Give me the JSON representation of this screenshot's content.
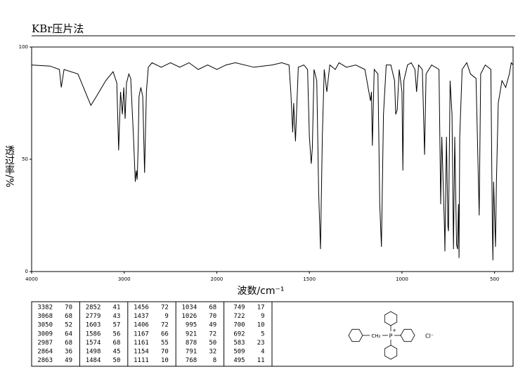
{
  "chart_data": {
    "type": "line",
    "title": "KBr压片法",
    "x_label": "波数/cm⁻¹",
    "y_label": "透过率/%",
    "xlim": [
      4000,
      400
    ],
    "xticks": [
      4000,
      3000,
      2000,
      1500,
      1000,
      500
    ],
    "ylim": [
      0,
      100
    ],
    "yticks": [
      0,
      50,
      100
    ],
    "color": "#000000",
    "x": [
      4000,
      3800,
      3700,
      3680,
      3650,
      3500,
      3400,
      3360,
      3300,
      3200,
      3120,
      3080,
      3060,
      3040,
      3020,
      3005,
      2990,
      2975,
      2950,
      2930,
      2900,
      2880,
      2870,
      2860,
      2850,
      2840,
      2820,
      2800,
      2780,
      2760,
      2740,
      2700,
      2600,
      2500,
      2400,
      2300,
      2200,
      2100,
      2000,
      1950,
      1900,
      1800,
      1700,
      1650,
      1610,
      1600,
      1590,
      1585,
      1575,
      1560,
      1530,
      1510,
      1500,
      1490,
      1484,
      1475,
      1460,
      1450,
      1440,
      1430,
      1420,
      1406,
      1390,
      1360,
      1340,
      1300,
      1250,
      1200,
      1170,
      1165,
      1160,
      1150,
      1130,
      1120,
      1111,
      1100,
      1085,
      1060,
      1040,
      1034,
      1026,
      1015,
      1000,
      995,
      990,
      970,
      950,
      930,
      921,
      910,
      890,
      878,
      870,
      840,
      800,
      791,
      785,
      770,
      768,
      760,
      752,
      749,
      740,
      730,
      722,
      715,
      705,
      700,
      695,
      692,
      688,
      675,
      650,
      630,
      600,
      583,
      575,
      550,
      520,
      512,
      509,
      505,
      500,
      495,
      490,
      480,
      460,
      440,
      420,
      410,
      400
    ],
    "values": [
      92,
      91.5,
      90,
      82,
      90,
      88,
      78,
      74,
      78,
      85,
      89,
      84,
      54,
      80,
      70,
      82,
      68,
      84,
      88,
      86,
      60,
      40,
      45,
      41,
      55,
      78,
      82,
      78,
      44,
      80,
      91,
      93,
      91,
      93,
      91,
      93,
      90,
      92,
      90,
      92,
      93,
      91,
      92,
      93,
      92,
      80,
      62,
      75,
      58,
      91,
      92,
      90,
      60,
      48,
      55,
      90,
      85,
      35,
      10,
      60,
      90,
      80,
      92,
      90,
      93,
      91,
      92,
      90,
      76,
      80,
      56,
      90,
      88,
      30,
      11,
      70,
      92,
      92,
      85,
      70,
      72,
      90,
      80,
      45,
      85,
      92,
      93,
      90,
      80,
      92,
      90,
      52,
      88,
      92,
      90,
      30,
      60,
      18,
      9,
      60,
      20,
      18,
      85,
      70,
      10,
      60,
      12,
      10,
      30,
      6,
      60,
      90,
      93,
      88,
      86,
      25,
      88,
      92,
      90,
      20,
      5,
      40,
      25,
      11,
      40,
      75,
      85,
      82,
      88,
      93,
      92
    ]
  },
  "peak_table": {
    "columns": [
      [
        [
          3382,
          70
        ],
        [
          3068,
          68
        ],
        [
          3050,
          52
        ],
        [
          3009,
          64
        ],
        [
          2987,
          68
        ],
        [
          2864,
          36
        ],
        [
          2863,
          49
        ]
      ],
      [
        [
          2852,
          41
        ],
        [
          2779,
          43
        ],
        [
          1603,
          57
        ],
        [
          1586,
          56
        ],
        [
          1574,
          68
        ],
        [
          1498,
          45
        ],
        [
          1484,
          50
        ]
      ],
      [
        [
          1456,
          72
        ],
        [
          1437,
          9
        ],
        [
          1406,
          72
        ],
        [
          1167,
          66
        ],
        [
          1161,
          55
        ],
        [
          1154,
          70
        ],
        [
          1111,
          10
        ]
      ],
      [
        [
          1034,
          68
        ],
        [
          1026,
          70
        ],
        [
          995,
          49
        ],
        [
          921,
          72
        ],
        [
          878,
          50
        ],
        [
          791,
          32
        ],
        [
          768,
          8
        ]
      ],
      [
        [
          749,
          17
        ],
        [
          722,
          9
        ],
        [
          700,
          10
        ],
        [
          692,
          5
        ],
        [
          583,
          23
        ],
        [
          509,
          4
        ],
        [
          495,
          11
        ]
      ]
    ]
  },
  "structure": {
    "ch2": "CH₂",
    "p": "P",
    "charge": "+",
    "anion": "Cl⁻"
  }
}
